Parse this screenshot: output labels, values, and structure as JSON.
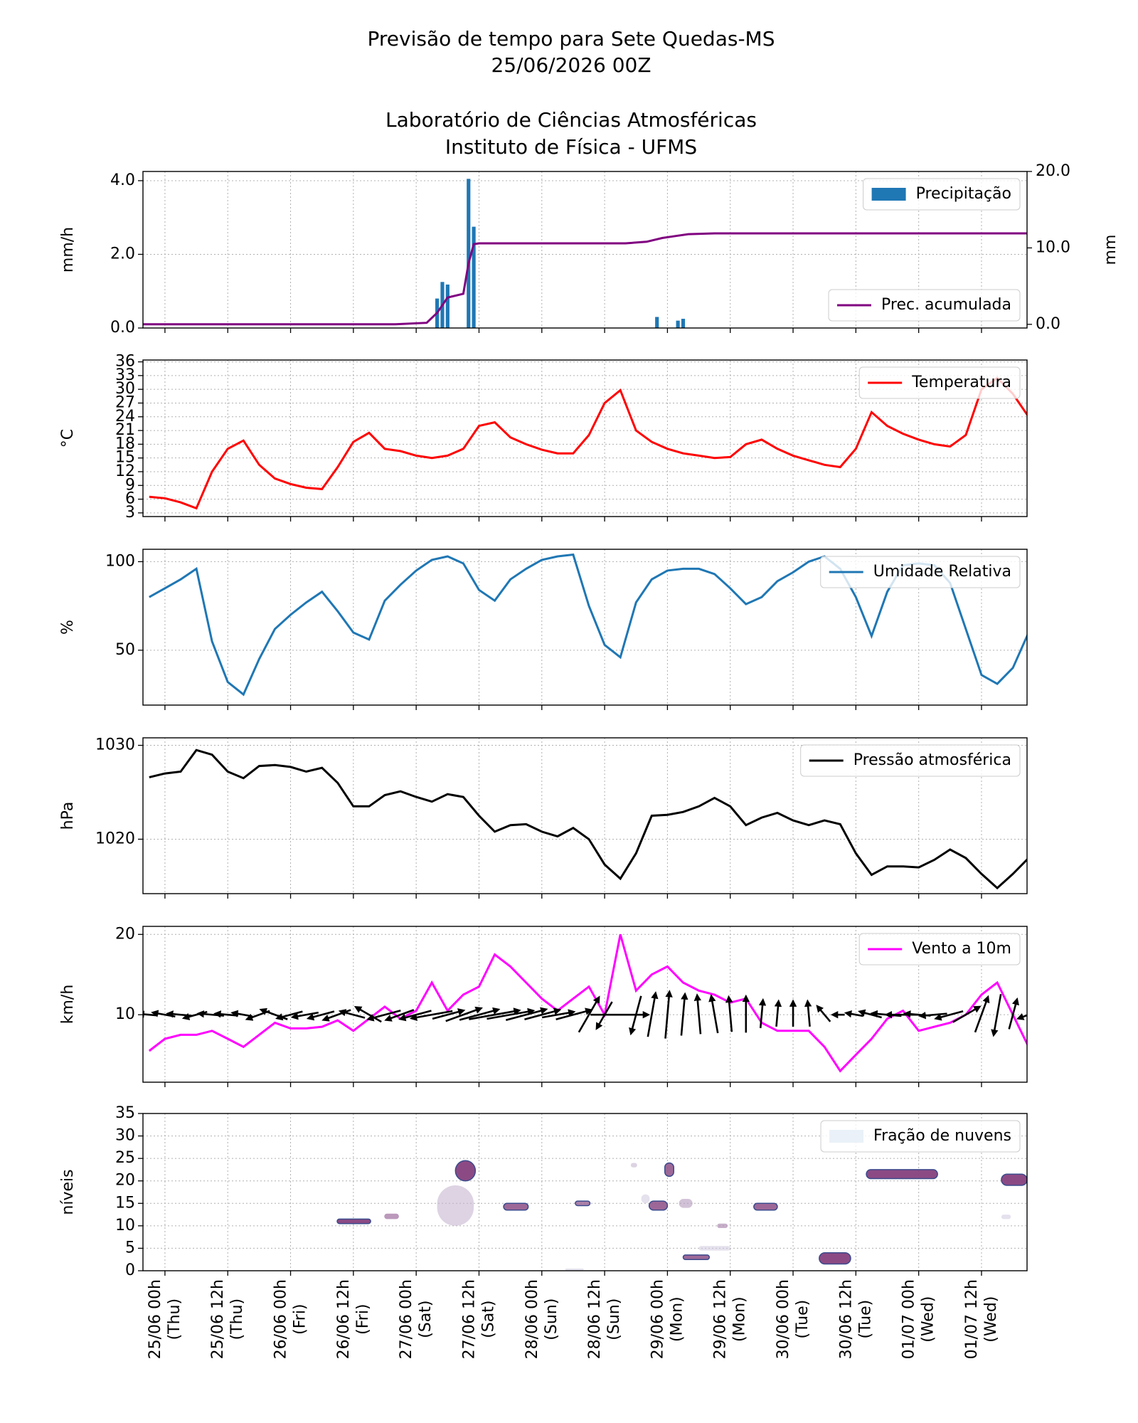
{
  "header": {
    "title": [
      "Previsão de tempo para Sete Quedas-MS",
      "25/06/2026 00Z"
    ],
    "subtitle": [
      "Laboratório de Ciências Atmosféricas",
      "Instituto de Física - UFMS"
    ]
  },
  "chart_data": [
    {
      "type": "bar",
      "grid": true,
      "ylabel": "mm/h",
      "y2label": "mm",
      "xlim": [
        -4.2,
        164.7
      ],
      "xticks": [
        0,
        12,
        24,
        36,
        48,
        60,
        72,
        84,
        96,
        108,
        120,
        132,
        144,
        156
      ],
      "ylim": [
        0,
        4.25
      ],
      "yticks": [
        {
          "value": 0,
          "label": "0.0"
        },
        {
          "value": 2,
          "label": "2.0"
        },
        {
          "value": 4,
          "label": "4.0"
        }
      ],
      "y2lim": [
        -0.48,
        20
      ],
      "y2ticks": [
        {
          "value": 0,
          "label": "0.0"
        },
        {
          "value": 10,
          "label": "10.0"
        },
        {
          "value": 20,
          "label": "20.0"
        }
      ],
      "series": [
        {
          "name": "Precipitação",
          "type": "bar",
          "color": "#1f77b4",
          "legend": "upper right",
          "x": [
            52,
            53,
            54,
            58,
            59,
            94,
            98,
            99
          ],
          "values": [
            0.8,
            1.25,
            1.18,
            4.05,
            2.75,
            0.3,
            0.2,
            0.25
          ]
        },
        {
          "name": "Prec. acumulada",
          "type": "line",
          "color": "#800080",
          "axis": "y2",
          "legend": "lower right",
          "x": [
            -4.2,
            44,
            50,
            52,
            54,
            57,
            58,
            59,
            60,
            88,
            92,
            95,
            97,
            100,
            105,
            164.7
          ],
          "values": [
            0,
            0,
            0.2,
            1.5,
            3.5,
            4,
            8,
            10.5,
            10.6,
            10.6,
            10.8,
            11.3,
            11.5,
            11.8,
            11.9,
            11.9
          ]
        }
      ]
    },
    {
      "type": "line",
      "grid": true,
      "ylabel": "°C",
      "legend": "upper right",
      "xlim": [
        -4.2,
        164.7
      ],
      "xticks": [
        0,
        12,
        24,
        36,
        48,
        60,
        72,
        84,
        96,
        108,
        120,
        132,
        144,
        156
      ],
      "ylim": [
        2.2,
        36.4
      ],
      "yticks": [
        3,
        6,
        9,
        12,
        15,
        18,
        21,
        24,
        27,
        30,
        33,
        36
      ],
      "x": [
        -3,
        0,
        3,
        6,
        9,
        12,
        15,
        18,
        21,
        24,
        27,
        30,
        33,
        36,
        39,
        42,
        45,
        48,
        51,
        54,
        57,
        60,
        63,
        66,
        69,
        72,
        75,
        78,
        81,
        84,
        87,
        90,
        93,
        96,
        99,
        102,
        105,
        108,
        111,
        114,
        117,
        120,
        123,
        126,
        129,
        132,
        135,
        138,
        141,
        144,
        147,
        150,
        153,
        156,
        159,
        162,
        165
      ],
      "series": [
        {
          "name": "Temperatura",
          "color": "#ff0000",
          "values": [
            6.5,
            6.2,
            5.3,
            4.0,
            12,
            17,
            18.8,
            13.5,
            10.5,
            9.3,
            8.5,
            8.2,
            13,
            18.5,
            20.5,
            17,
            16.5,
            15.5,
            15,
            15.5,
            17,
            22,
            22.8,
            19.5,
            18,
            16.8,
            16,
            16,
            20,
            27,
            29.8,
            21,
            18.5,
            17,
            16,
            15.5,
            15,
            15.2,
            18,
            19,
            17,
            15.5,
            14.5,
            13.5,
            13,
            17,
            25,
            22,
            20.3,
            19,
            18,
            17.5,
            20,
            30,
            32.5,
            29,
            24
          ]
        }
      ]
    },
    {
      "type": "line",
      "grid": true,
      "ylabel": "%",
      "legend": "upper right",
      "xlim": [
        -4.2,
        164.7
      ],
      "xticks": [
        0,
        12,
        24,
        36,
        48,
        60,
        72,
        84,
        96,
        108,
        120,
        132,
        144,
        156
      ],
      "ylim": [
        19,
        107
      ],
      "yticks": [
        50,
        100
      ],
      "x": [
        -3,
        0,
        3,
        6,
        9,
        12,
        15,
        18,
        21,
        24,
        27,
        30,
        33,
        36,
        39,
        42,
        45,
        48,
        51,
        54,
        57,
        60,
        63,
        66,
        69,
        72,
        75,
        78,
        81,
        84,
        87,
        90,
        93,
        96,
        99,
        102,
        105,
        108,
        111,
        114,
        117,
        120,
        123,
        126,
        129,
        132,
        135,
        138,
        141,
        144,
        147,
        150,
        153,
        156,
        159,
        162,
        165
      ],
      "series": [
        {
          "name": "Umidade Relativa",
          "color": "#1f77b4",
          "values": [
            80,
            85,
            90,
            96,
            55,
            32,
            25,
            45,
            62,
            70,
            77,
            83,
            72,
            60,
            56,
            78,
            87,
            95,
            101,
            103,
            99,
            84,
            78,
            90,
            96,
            101,
            103,
            104,
            75,
            53,
            46,
            77,
            90,
            95,
            96,
            96,
            93,
            85,
            76,
            80,
            89,
            94,
            100,
            103,
            96,
            80,
            58,
            83,
            98,
            99,
            98,
            88,
            62,
            36,
            31,
            40,
            60
          ]
        }
      ]
    },
    {
      "type": "line",
      "grid": true,
      "ylabel": "hPa",
      "legend": "upper right",
      "xlim": [
        -4.2,
        164.7
      ],
      "xticks": [
        0,
        12,
        24,
        36,
        48,
        60,
        72,
        84,
        96,
        108,
        120,
        132,
        144,
        156
      ],
      "ylim": [
        1014.2,
        1030.8
      ],
      "yticks": [
        1020,
        1030
      ],
      "x": [
        -3,
        0,
        3,
        6,
        9,
        12,
        15,
        18,
        21,
        24,
        27,
        30,
        33,
        36,
        39,
        42,
        45,
        48,
        51,
        54,
        57,
        60,
        63,
        66,
        69,
        72,
        75,
        78,
        81,
        84,
        87,
        90,
        93,
        96,
        99,
        102,
        105,
        108,
        111,
        114,
        117,
        120,
        123,
        126,
        129,
        132,
        135,
        138,
        141,
        144,
        147,
        150,
        153,
        156,
        159,
        162,
        165
      ],
      "series": [
        {
          "name": "Pressão atmosférica",
          "color": "#000000",
          "values": [
            1026.6,
            1027,
            1027.2,
            1029.5,
            1029,
            1027.2,
            1026.5,
            1027.8,
            1027.9,
            1027.7,
            1027.2,
            1027.6,
            1026,
            1023.5,
            1023.5,
            1024.7,
            1025.1,
            1024.5,
            1024,
            1024.8,
            1024.5,
            1022.5,
            1020.8,
            1021.5,
            1021.6,
            1020.8,
            1020.3,
            1021.2,
            1020,
            1017.3,
            1015.8,
            1018.5,
            1022.5,
            1022.6,
            1022.9,
            1023.5,
            1024.4,
            1023.5,
            1021.5,
            1022.3,
            1022.8,
            1022,
            1021.5,
            1022,
            1021.6,
            1018.5,
            1016.2,
            1017.1,
            1017.1,
            1017,
            1017.8,
            1018.9,
            1018,
            1016.3,
            1014.8,
            1016.3,
            1018
          ]
        }
      ]
    },
    {
      "type": "line",
      "grid": true,
      "ylabel": "km/h",
      "legend": "upper right",
      "arrow_color": "#000000",
      "xlim": [
        -4.2,
        164.7
      ],
      "xticks": [
        0,
        12,
        24,
        36,
        48,
        60,
        72,
        84,
        96,
        108,
        120,
        132,
        144,
        156
      ],
      "ylim": [
        1.6,
        21
      ],
      "yticks": [
        10,
        20
      ],
      "x": [
        -3,
        0,
        3,
        6,
        9,
        12,
        15,
        18,
        21,
        24,
        27,
        30,
        33,
        36,
        39,
        42,
        45,
        48,
        51,
        54,
        57,
        60,
        63,
        66,
        69,
        72,
        75,
        78,
        81,
        84,
        87,
        90,
        93,
        96,
        99,
        102,
        105,
        108,
        111,
        114,
        117,
        120,
        123,
        126,
        129,
        132,
        135,
        138,
        141,
        144,
        147,
        150,
        153,
        156,
        159,
        162,
        165
      ],
      "wind_direction": [
        175,
        170,
        175,
        195,
        175,
        175,
        170,
        200,
        160,
        195,
        190,
        195,
        200,
        165,
        150,
        195,
        200,
        195,
        190,
        15,
        20,
        15,
        10,
        10,
        15,
        15,
        10,
        15,
        60,
        240,
        0,
        255,
        80,
        85,
        85,
        95,
        100,
        95,
        90,
        85,
        85,
        90,
        95,
        130,
        180,
        170,
        165,
        175,
        180,
        175,
        185,
        195,
        30,
        70,
        260,
        75,
        200
      ],
      "series": [
        {
          "name": "Vento a 10m",
          "color": "#ff00ff",
          "values": [
            5.5,
            7,
            7.5,
            7.5,
            8,
            7,
            6,
            7.5,
            9,
            8.3,
            8.3,
            8.5,
            9.3,
            8,
            9.5,
            11,
            9.5,
            10.5,
            14,
            10.5,
            12.5,
            13.5,
            17.5,
            16,
            14,
            12,
            10.5,
            12,
            13.5,
            10,
            20,
            13,
            15,
            16,
            14,
            13,
            12.5,
            11.5,
            12,
            9,
            8,
            8,
            8,
            6,
            3,
            5,
            7,
            9.5,
            10.5,
            8,
            8.5,
            9,
            10,
            12.5,
            14,
            10,
            6
          ]
        }
      ]
    },
    {
      "type": "contour",
      "grid": true,
      "ylabel": "níveis",
      "legend": "upper right",
      "xlim": [
        -4.2,
        164.7
      ],
      "xticks": [
        {
          "value": 0,
          "label": "25/06 00h"
        },
        {
          "value": 12,
          "label": "25/06 12h"
        },
        {
          "value": 24,
          "label": "26/06 00h"
        },
        {
          "value": 36,
          "label": "26/06 12h"
        },
        {
          "value": 48,
          "label": "27/06 00h"
        },
        {
          "value": 60,
          "label": "27/06 12h"
        },
        {
          "value": 72,
          "label": "28/06 00h"
        },
        {
          "value": 84,
          "label": "28/06 12h"
        },
        {
          "value": 96,
          "label": "29/06 00h"
        },
        {
          "value": 108,
          "label": "29/06 12h"
        },
        {
          "value": 120,
          "label": "30/06 00h"
        },
        {
          "value": 132,
          "label": "30/06 12h"
        },
        {
          "value": 144,
          "label": "01/07 00h"
        },
        {
          "value": 156,
          "label": "01/07 12h"
        }
      ],
      "xtick_weekdays": [
        "(Thu)",
        "(Thu)",
        "(Fri)",
        "(Fri)",
        "(Sat)",
        "(Sat)",
        "(Sun)",
        "(Sun)",
        "(Mon)",
        "(Mon)",
        "(Tue)",
        "(Tue)",
        "(Wed)",
        "(Wed)"
      ],
      "ylim": [
        0,
        35
      ],
      "yticks": [
        0,
        5,
        10,
        15,
        20,
        25,
        30,
        35
      ],
      "colormap": [
        "#e3edf7",
        "#7b2c6e"
      ],
      "series": [
        {
          "name": "Fração de nuvens",
          "color": "#eaf1f8",
          "patches": [
            {
              "x": [
                32.9,
                39.3
              ],
              "y": [
                10.5,
                11.5
              ],
              "value": 0.9
            },
            {
              "x": [
                41.9,
                44.7
              ],
              "y": [
                11.5,
                12.7
              ],
              "value": 0.6
            },
            {
              "x": [
                52,
                59
              ],
              "y": [
                10,
                19
              ],
              "value": 0.3
            },
            {
              "x": [
                55.5,
                59.3
              ],
              "y": [
                20,
                24.5
              ],
              "value": 0.9
            },
            {
              "x": [
                64.7,
                69.4
              ],
              "y": [
                13.5,
                15
              ],
              "value": 0.8
            },
            {
              "x": [
                78.4,
                81.2
              ],
              "y": [
                14.5,
                15.5
              ],
              "value": 0.7
            },
            {
              "x": [
                76.5,
                80
              ],
              "y": [
                0,
                0.5
              ],
              "value": 0.2
            },
            {
              "x": [
                89,
                90.2
              ],
              "y": [
                23,
                24
              ],
              "value": 0.3
            },
            {
              "x": [
                91,
                92.6
              ],
              "y": [
                15,
                17
              ],
              "value": 0.2
            },
            {
              "x": [
                92.5,
                96
              ],
              "y": [
                13.5,
                15.5
              ],
              "value": 0.8
            },
            {
              "x": [
                95.5,
                97.2
              ],
              "y": [
                21,
                24
              ],
              "value": 0.8
            },
            {
              "x": [
                98.2,
                100.8
              ],
              "y": [
                14,
                16
              ],
              "value": 0.4
            },
            {
              "x": [
                99,
                104
              ],
              "y": [
                2.5,
                3.5
              ],
              "value": 0.8
            },
            {
              "x": [
                102,
                108
              ],
              "y": [
                4.5,
                5.5
              ],
              "value": 0.2
            },
            {
              "x": [
                105.5,
                107.5
              ],
              "y": [
                9.5,
                10.5
              ],
              "value": 0.5
            },
            {
              "x": [
                112.5,
                117
              ],
              "y": [
                13.5,
                15
              ],
              "value": 0.8
            },
            {
              "x": [
                125,
                131
              ],
              "y": [
                1.5,
                4
              ],
              "value": 0.9
            },
            {
              "x": [
                134,
                147.6
              ],
              "y": [
                20.5,
                22.5
              ],
              "value": 0.9
            },
            {
              "x": [
                159.8,
                161.6
              ],
              "y": [
                11.5,
                12.5
              ],
              "value": 0.2
            },
            {
              "x": [
                159.8,
                164.7
              ],
              "y": [
                19,
                21.5
              ],
              "value": 0.9
            }
          ]
        }
      ]
    }
  ]
}
